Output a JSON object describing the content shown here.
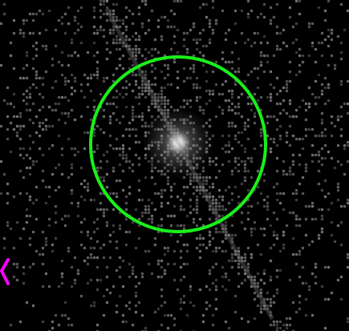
{
  "image": {
    "description_free": true,
    "background_color": "#000000",
    "noise_color": "#7a7a7a",
    "streak_color": "#8a8a8a",
    "source_core_color": "#ffffff"
  },
  "region": {
    "shape": "circle",
    "color": "#19f019"
  },
  "edge_marker": {
    "shape": "chevron",
    "color": "#ff00ff"
  }
}
